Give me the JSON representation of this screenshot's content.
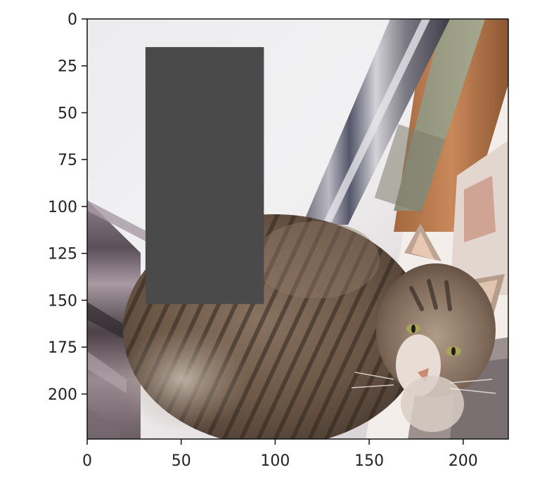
{
  "figure": {
    "x_axis": {
      "range": [
        0,
        224
      ],
      "ticks": [
        0,
        50,
        100,
        150,
        200
      ],
      "tick_labels": [
        "0",
        "50",
        "100",
        "150",
        "200"
      ]
    },
    "y_axis": {
      "range": [
        0,
        224
      ],
      "inverted": true,
      "ticks": [
        0,
        25,
        50,
        75,
        100,
        125,
        150,
        175,
        200
      ],
      "tick_labels": [
        "0",
        "25",
        "50",
        "75",
        "100",
        "125",
        "150",
        "175",
        "200"
      ]
    },
    "image": {
      "content": "cat-photo",
      "occlusion_patch": {
        "x_range": [
          31,
          94
        ],
        "y_range": [
          15,
          152
        ],
        "color": "#4a4a4a"
      }
    },
    "colors": {
      "axis": "#111111",
      "label_text": "#222222"
    }
  }
}
